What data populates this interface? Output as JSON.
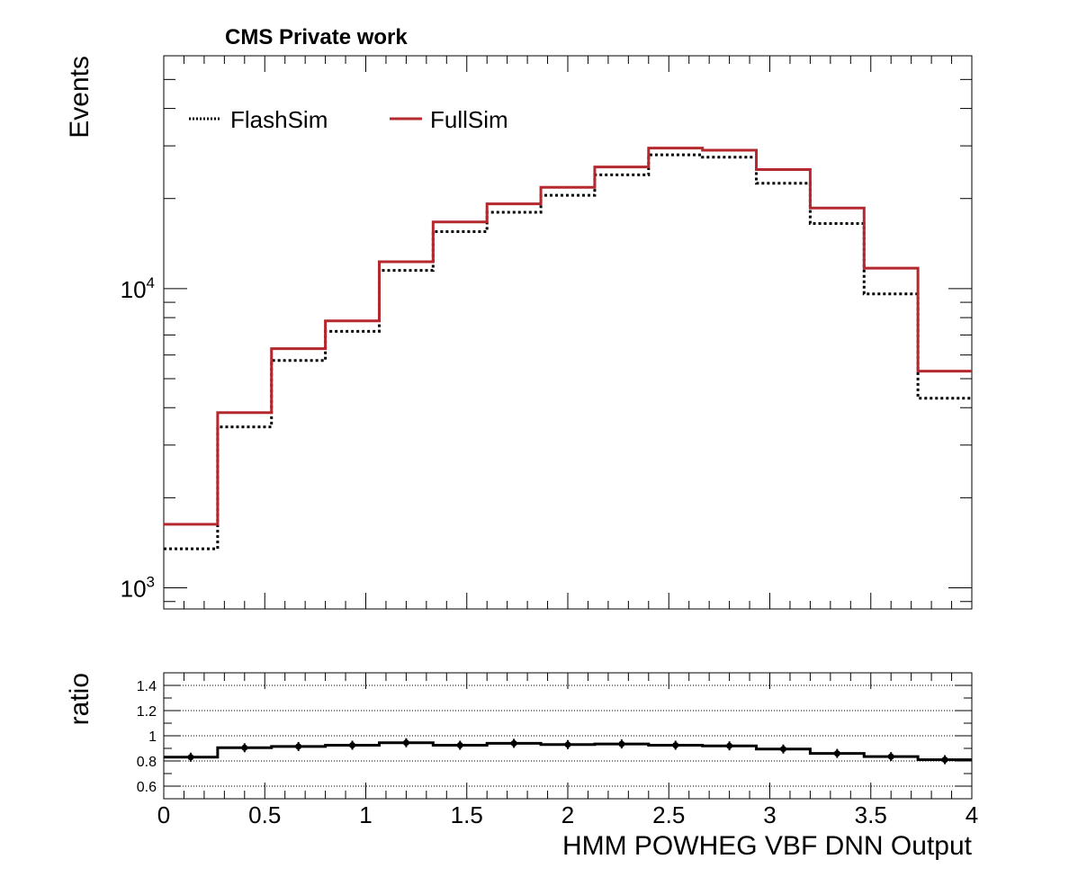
{
  "chart_data": [
    {
      "type": "line",
      "step": true,
      "title": "CMS Private work",
      "ylabel": "Events",
      "xlabel": "",
      "yscale": "log",
      "ylim": [
        850,
        60000
      ],
      "xlim": [
        0,
        4
      ],
      "ytick_labels": [
        {
          "value": 1000,
          "base": "10",
          "exp": "3"
        },
        {
          "value": 10000,
          "base": "10",
          "exp": "4"
        }
      ],
      "legend": {
        "placement": "top-left",
        "columns": 2
      },
      "bin_edges": [
        0,
        0.2667,
        0.5333,
        0.8,
        1.0667,
        1.3333,
        1.6,
        1.8667,
        2.1333,
        2.4,
        2.6667,
        2.9333,
        3.2,
        3.4667,
        3.7333,
        4.0
      ],
      "series": [
        {
          "name": "FlashSim",
          "color": "#000000",
          "style": "dotted",
          "values": [
            1350,
            3450,
            5750,
            7200,
            11500,
            15500,
            18000,
            20500,
            24000,
            28000,
            27500,
            22500,
            16500,
            9600,
            4300
          ]
        },
        {
          "name": "FullSim",
          "color": "#b5282e",
          "style": "solid",
          "values": [
            1630,
            3850,
            6300,
            7800,
            12300,
            16700,
            19200,
            21800,
            25500,
            29500,
            29000,
            25000,
            18600,
            11700,
            5300
          ]
        }
      ]
    },
    {
      "type": "line",
      "step": true,
      "title": "",
      "ylabel": "ratio",
      "xlabel": "HMM POWHEG VBF DNN Output",
      "ylim": [
        0.5,
        1.5
      ],
      "xlim": [
        0,
        4
      ],
      "grid": true,
      "yticks": [
        0.6,
        0.8,
        1,
        1.2,
        1.4
      ],
      "ytick_labels": [
        "0.6",
        "0.8",
        "1",
        "1.2",
        "1.4"
      ],
      "xticks": [
        0,
        0.5,
        1,
        1.5,
        2,
        2.5,
        3,
        3.5,
        4
      ],
      "xtick_labels": [
        "0",
        "0.5",
        "1",
        "1.5",
        "2",
        "2.5",
        "3",
        "3.5",
        "4"
      ],
      "bin_edges": [
        0,
        0.2667,
        0.5333,
        0.8,
        1.0667,
        1.3333,
        1.6,
        1.8667,
        2.1333,
        2.4,
        2.6667,
        2.9333,
        3.2,
        3.4667,
        3.7333,
        4.0
      ],
      "series": [
        {
          "color": "#000000",
          "values": [
            0.83,
            0.905,
            0.915,
            0.925,
            0.945,
            0.925,
            0.94,
            0.93,
            0.935,
            0.925,
            0.92,
            0.895,
            0.86,
            0.835,
            0.81
          ]
        }
      ]
    }
  ]
}
